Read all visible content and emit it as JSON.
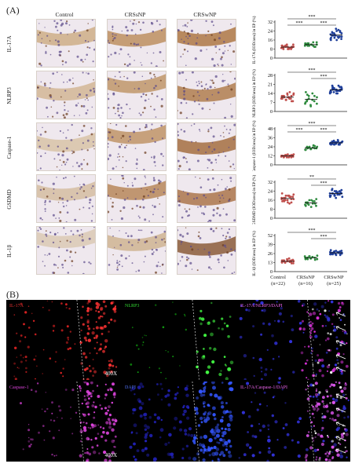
{
  "panel_a_label": "(A)",
  "panel_b_label": "(B)",
  "columns": [
    "Control",
    "CRSsNP",
    "CRSwNP"
  ],
  "rows": [
    "IL-17A",
    "NLRP3",
    "Caspase-1",
    "GSDMD",
    "IL-1β"
  ],
  "groups": [
    {
      "name": "Control",
      "n": "(n=22)"
    },
    {
      "name": "CRSsNP",
      "n": "(n=16)"
    },
    {
      "name": "CRSwNP",
      "n": "(n=25)"
    }
  ],
  "colors": {
    "control": "#c0504d",
    "crssnp": "#2e8b3e",
    "crswnp": "#1f3f9a"
  },
  "chart_data": [
    {
      "type": "scatter",
      "ylabel": "IL-17A (IOD/area) in EP (%)",
      "ylim": [
        0,
        32
      ],
      "yticks": [
        "0",
        "8",
        "16",
        "24",
        "32"
      ],
      "groups": [
        "Control",
        "CRSsNP",
        "CRSwNP"
      ],
      "values": [
        [
          9,
          10,
          11,
          8,
          9,
          10,
          12,
          9,
          8,
          11,
          10,
          9,
          8,
          10,
          11,
          9,
          10,
          12,
          8,
          9,
          10,
          11
        ],
        [
          11,
          12,
          13,
          12,
          11,
          10,
          14,
          12,
          13,
          11,
          12,
          14,
          10,
          12,
          13,
          11
        ],
        [
          18,
          20,
          22,
          16,
          19,
          24,
          17,
          21,
          23,
          18,
          20,
          25,
          19,
          22,
          17,
          20,
          21,
          24,
          18,
          23,
          19,
          16,
          22,
          20,
          26
        ]
      ],
      "sig": [
        {
          "pair": [
            0,
            2
          ],
          "label": "***"
        },
        {
          "pair": [
            0,
            1
          ],
          "label": "***"
        },
        {
          "pair": [
            1,
            2
          ],
          "label": "***"
        }
      ]
    },
    {
      "type": "scatter",
      "ylabel": "NLRP3 (IOD/area) in EP (%)",
      "ylim": [
        0,
        28
      ],
      "yticks": [
        "0",
        "7",
        "14",
        "21",
        "28"
      ],
      "groups": [
        "Control",
        "CRSsNP",
        "CRSwNP"
      ],
      "values": [
        [
          10,
          12,
          9,
          14,
          11,
          8,
          13,
          10,
          12,
          9,
          11,
          15,
          10,
          8,
          12,
          11,
          9,
          13,
          10,
          12,
          14,
          11
        ],
        [
          6,
          9,
          12,
          5,
          14,
          8,
          11,
          7,
          13,
          10,
          4,
          9,
          12,
          6,
          15,
          8
        ],
        [
          15,
          17,
          18,
          14,
          16,
          19,
          17,
          15,
          20,
          18,
          16,
          14,
          17,
          19,
          16,
          18,
          15,
          17,
          20,
          16,
          18,
          14,
          19,
          17,
          16
        ]
      ],
      "sig": [
        {
          "pair": [
            0,
            2
          ],
          "label": "***"
        },
        {
          "pair": [
            1,
            2
          ],
          "label": "***"
        }
      ]
    },
    {
      "type": "scatter",
      "ylabel": "Caspase-1 (IOD/area) in EP (%)",
      "ylim": [
        0,
        48
      ],
      "yticks": [
        "0",
        "12",
        "24",
        "36",
        "48"
      ],
      "groups": [
        "Control",
        "CRSsNP",
        "CRSwNP"
      ],
      "values": [
        [
          11,
          12,
          13,
          10,
          12,
          11,
          14,
          12,
          10,
          13,
          11,
          12,
          10,
          13,
          12,
          11,
          12,
          14,
          10,
          13,
          11,
          12
        ],
        [
          20,
          22,
          24,
          21,
          23,
          25,
          22,
          20,
          24,
          23,
          21,
          26,
          22,
          24,
          20,
          23
        ],
        [
          27,
          29,
          30,
          28,
          31,
          27,
          30,
          29,
          28,
          32,
          30,
          27,
          29,
          31,
          28,
          30,
          27,
          29,
          33,
          28,
          30,
          29,
          31,
          27,
          30
        ]
      ],
      "sig": [
        {
          "pair": [
            0,
            2
          ],
          "label": "***"
        },
        {
          "pair": [
            0,
            1
          ],
          "label": "***"
        },
        {
          "pair": [
            1,
            2
          ],
          "label": "***"
        }
      ]
    },
    {
      "type": "scatter",
      "ylabel": "GSDMD (IOD/area) in EP (%)",
      "ylim": [
        0,
        32
      ],
      "yticks": [
        "0",
        "8",
        "16",
        "24",
        "32"
      ],
      "groups": [
        "Control",
        "CRSsNP",
        "CRSwNP"
      ],
      "values": [
        [
          18,
          16,
          20,
          14,
          19,
          17,
          21,
          15,
          18,
          16,
          20,
          13,
          19,
          17,
          22,
          15,
          18,
          16,
          20,
          14,
          19,
          17
        ],
        [
          12,
          14,
          16,
          10,
          15,
          13,
          17,
          11,
          14,
          12,
          16,
          13,
          15,
          11,
          14,
          13
        ],
        [
          20,
          22,
          24,
          18,
          23,
          21,
          25,
          19,
          22,
          20,
          24,
          21,
          23,
          19,
          22,
          26,
          20,
          23,
          21,
          24,
          22,
          20,
          25,
          21,
          23
        ]
      ],
      "sig": [
        {
          "pair": [
            0,
            2
          ],
          "label": "**"
        },
        {
          "pair": [
            1,
            2
          ],
          "label": "***"
        }
      ]
    },
    {
      "type": "scatter",
      "ylabel": "IL-1β (IOD/area) in EP (%)",
      "ylim": [
        0,
        52
      ],
      "yticks": [
        "0",
        "13",
        "26",
        "39",
        "52"
      ],
      "groups": [
        "Control",
        "CRSsNP",
        "CRSwNP"
      ],
      "values": [
        [
          14,
          16,
          13,
          18,
          15,
          12,
          17,
          14,
          16,
          13,
          15,
          19,
          14,
          12,
          16,
          15,
          13,
          17,
          14,
          16,
          15,
          13
        ],
        [
          18,
          20,
          22,
          19,
          21,
          17,
          23,
          20,
          18,
          22,
          19,
          21,
          20,
          18,
          22,
          19
        ],
        [
          25,
          27,
          29,
          24,
          28,
          26,
          30,
          25,
          27,
          29,
          26,
          28,
          24,
          27,
          31,
          26,
          28,
          25,
          27,
          29,
          26,
          28,
          25,
          27,
          30
        ]
      ],
      "sig": [
        {
          "pair": [
            0,
            2
          ],
          "label": "***"
        },
        {
          "pair": [
            1,
            2
          ],
          "label": "***"
        }
      ]
    }
  ],
  "fluor_labels": {
    "il17a": "IL-17A",
    "nlrp3": "NLRP3",
    "merge1": "IL-17A/NLRP3/DAPI",
    "casp": "Caspase-1",
    "dapi": "DAPI",
    "merge2": "IL-17A/Caspase-1/DAPI"
  },
  "magnification": "400X"
}
